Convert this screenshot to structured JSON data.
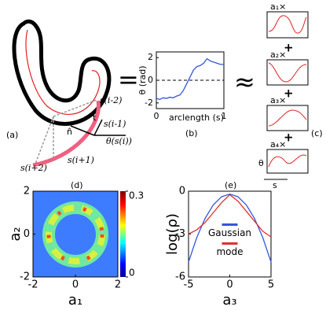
{
  "figure": {
    "panel_a": {
      "label": "(a)",
      "points": [
        "s(i-2)",
        "s(i-1)",
        "s(i+1)",
        "s(i+2)"
      ],
      "normal": "n̂",
      "tangent": "t̂",
      "angle": "θ(s(i))"
    },
    "equals": "=",
    "approx": "≈",
    "panel_c": {
      "label": "(c)",
      "coefficients": [
        "a₁×",
        "a₂×",
        "a₃×",
        "a₄×"
      ],
      "plus": "+",
      "ylabel": "θ",
      "xlabel": "s"
    }
  },
  "chart_data": [
    {
      "type": "line",
      "label": "(b)",
      "xlabel": "arclength (s)",
      "ylabel": "θ (rad)",
      "x": [
        0,
        0.05,
        0.1,
        0.15,
        0.2,
        0.25,
        0.3,
        0.35,
        0.4,
        0.45,
        0.5,
        0.55,
        0.6,
        0.65,
        0.7,
        0.75,
        0.8,
        0.85,
        0.9,
        0.95,
        1
      ],
      "values": [
        -1.6,
        -1.7,
        -1.55,
        -1.6,
        -1.5,
        -1.55,
        -1.4,
        -1.3,
        -0.9,
        -0.3,
        0.3,
        0.9,
        1.2,
        1.3,
        1.5,
        1.9,
        1.7,
        1.6,
        1.5,
        1.4,
        1.4
      ],
      "color": "#3355dd",
      "xlim": [
        0,
        1
      ],
      "ylim": [
        -2.5,
        2.5
      ],
      "xticks": [
        0,
        1
      ],
      "yticks": [
        -2,
        0,
        2
      ],
      "reference_line": 0
    },
    {
      "type": "heatmap",
      "label": "(d)",
      "xlabel": "a₁",
      "ylabel": "a₂",
      "xlim": [
        -2,
        2
      ],
      "ylim": [
        -2,
        2
      ],
      "xticks": [
        -2,
        0,
        2
      ],
      "yticks": [
        -2,
        0,
        2
      ],
      "colorbar_lim": [
        0,
        0.3
      ],
      "colorbar_ticks": [
        0,
        0.3
      ]
    },
    {
      "type": "line",
      "label": "(e)",
      "xlabel": "a₃",
      "ylabel": "log(ρ)",
      "x": [
        -5,
        -4,
        -3,
        -2,
        -1,
        0,
        1,
        2,
        3,
        4,
        5
      ],
      "series": [
        {
          "name": "Gaussian",
          "color": "#3355dd",
          "values": [
            -4.95,
            -3.24,
            -1.91,
            -0.96,
            -0.39,
            -0.2,
            -0.39,
            -0.96,
            -1.91,
            -3.24,
            -4.95
          ]
        },
        {
          "name": "mode",
          "color": "#e03030",
          "values": [
            -3.0,
            -2.7,
            -2.2,
            -1.5,
            -0.8,
            -0.25,
            -0.7,
            -1.4,
            -2.1,
            -2.8,
            -3.2
          ]
        }
      ],
      "xlim": [
        -5,
        5
      ],
      "ylim": [
        -6,
        0
      ],
      "xticks": [
        -5,
        0,
        5
      ],
      "yticks": [
        -6,
        -3,
        0
      ],
      "legend": "center"
    }
  ]
}
